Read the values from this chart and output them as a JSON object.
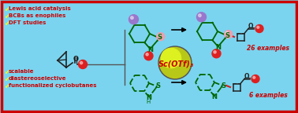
{
  "bg_color": "#7ad4ef",
  "border_color": "#cc0000",
  "border_width": 2.5,
  "bullet_text_top": [
    "Lewis acid catalysis",
    "BCBs as enophiles",
    "DFT studies"
  ],
  "bullet_text_bottom": [
    "scalable",
    "diastereoselective",
    "functionalized cyclobutanes"
  ],
  "bullet_color_check": "#ffff00",
  "bullet_color_text": "#cc0000",
  "bullet_fontsize": 5.0,
  "examples_top": "26 examples",
  "examples_bottom": "6 examples",
  "examples_color": "#cc0000",
  "examples_fontsize": 5.5,
  "sc_otf_text": "Sc(OTf)₃",
  "sc_otf_color": "#cc0000",
  "sc_otf_fontsize": 7.0,
  "sc_circle_color1": "#ddf020",
  "sc_circle_color2": "#b8c818",
  "sc_circle_border": "#555555",
  "ring_color": "#006600",
  "ring_lw": 1.3,
  "red_sphere_color": "#dd2020",
  "pink_sphere_color": "#e8a0b0",
  "purple_sphere_color": "#9977cc",
  "dark_color": "#222222",
  "red_bond_color": "#cc2020"
}
